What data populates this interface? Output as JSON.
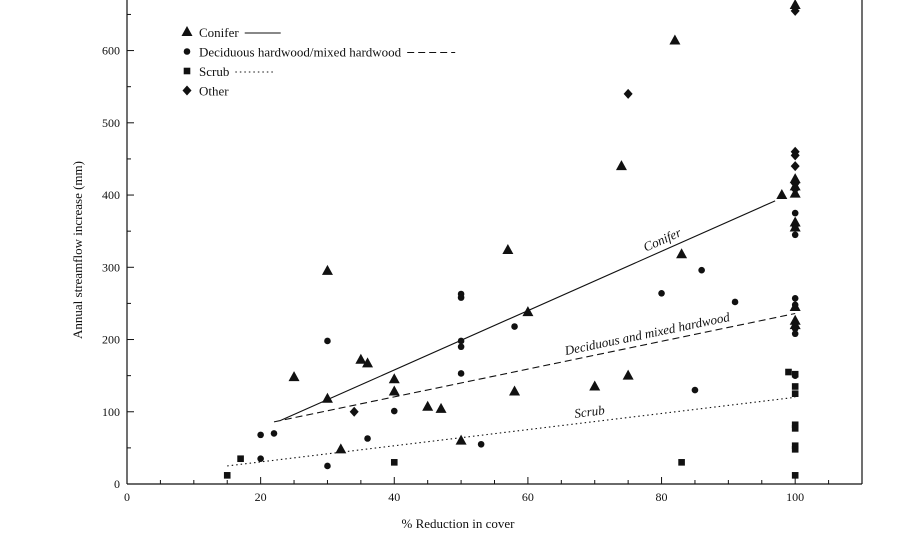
{
  "chart_data": {
    "type": "scatter",
    "xlabel": "% Reduction in cover",
    "ylabel": "Annual streamflow increase (mm)",
    "xlim": [
      0,
      110
    ],
    "ylim": [
      0,
      670
    ],
    "xticks": [
      "0",
      "20",
      "40",
      "60",
      "80",
      "100"
    ],
    "yticks": [
      "0",
      "100",
      "200",
      "300",
      "400",
      "500",
      "600"
    ],
    "grid": false,
    "legend_position": "top-left",
    "legend": [
      {
        "label": "Conifer",
        "marker": "triangle",
        "line": "solid"
      },
      {
        "label": "Deciduous hardwood/mixed hardwood",
        "marker": "circle",
        "line": "dashed"
      },
      {
        "label": "Scrub",
        "marker": "square",
        "line": "dotted"
      },
      {
        "label": "Other",
        "marker": "diamond",
        "line": "none"
      }
    ],
    "series": [
      {
        "name": "Conifer",
        "marker": "triangle",
        "points": [
          [
            25,
            148
          ],
          [
            30,
            295
          ],
          [
            30,
            118
          ],
          [
            32,
            48
          ],
          [
            35,
            172
          ],
          [
            36,
            167
          ],
          [
            40,
            145
          ],
          [
            40,
            128
          ],
          [
            45,
            107
          ],
          [
            47,
            104
          ],
          [
            50,
            60
          ],
          [
            57,
            324
          ],
          [
            58,
            128
          ],
          [
            60,
            238
          ],
          [
            70,
            135
          ],
          [
            74,
            440
          ],
          [
            75,
            150
          ],
          [
            82,
            614
          ],
          [
            83,
            318
          ],
          [
            98,
            400
          ],
          [
            100,
            663
          ],
          [
            100,
            422
          ],
          [
            100,
            412
          ],
          [
            100,
            402
          ],
          [
            100,
            362
          ],
          [
            100,
            355
          ],
          [
            100,
            245
          ],
          [
            100,
            226
          ],
          [
            100,
            220
          ]
        ]
      },
      {
        "name": "Deciduous hardwood/mixed hardwood",
        "marker": "circle",
        "points": [
          [
            20,
            68
          ],
          [
            20,
            35
          ],
          [
            22,
            70
          ],
          [
            30,
            198
          ],
          [
            30,
            25
          ],
          [
            36,
            63
          ],
          [
            40,
            101
          ],
          [
            50,
            263
          ],
          [
            50,
            258
          ],
          [
            50,
            198
          ],
          [
            50,
            190
          ],
          [
            50,
            153
          ],
          [
            53,
            55
          ],
          [
            58,
            218
          ],
          [
            80,
            264
          ],
          [
            85,
            130
          ],
          [
            86,
            296
          ],
          [
            91,
            252
          ],
          [
            100,
            375
          ],
          [
            100,
            355
          ],
          [
            100,
            345
          ],
          [
            100,
            257
          ],
          [
            100,
            248
          ],
          [
            100,
            215
          ],
          [
            100,
            208
          ],
          [
            100,
            150
          ]
        ]
      },
      {
        "name": "Scrub",
        "marker": "square",
        "points": [
          [
            15,
            12
          ],
          [
            17,
            35
          ],
          [
            40,
            30
          ],
          [
            83,
            30
          ],
          [
            99,
            155
          ],
          [
            100,
            152
          ],
          [
            100,
            135
          ],
          [
            100,
            125
          ],
          [
            100,
            82
          ],
          [
            100,
            77
          ],
          [
            100,
            53
          ],
          [
            100,
            48
          ],
          [
            100,
            12
          ]
        ]
      },
      {
        "name": "Other",
        "marker": "diamond",
        "points": [
          [
            34,
            100
          ],
          [
            75,
            540
          ],
          [
            100,
            655
          ],
          [
            100,
            460
          ],
          [
            100,
            455
          ],
          [
            100,
            440
          ],
          [
            100,
            416
          ],
          [
            100,
            408
          ]
        ]
      }
    ],
    "fit_lines": [
      {
        "name": "Conifer",
        "label": "Conifer",
        "style": "solid",
        "x": [
          23,
          97
        ],
        "y": [
          88,
          392
        ]
      },
      {
        "name": "Deciduous hardwood/mixed hardwood",
        "label": "Deciduous and mixed hardwood",
        "style": "dashed",
        "x": [
          22,
          100
        ],
        "y": [
          86,
          236
        ]
      },
      {
        "name": "Scrub",
        "label": "Scrub",
        "style": "dotted",
        "x": [
          15,
          100
        ],
        "y": [
          25,
          120
        ]
      }
    ]
  }
}
